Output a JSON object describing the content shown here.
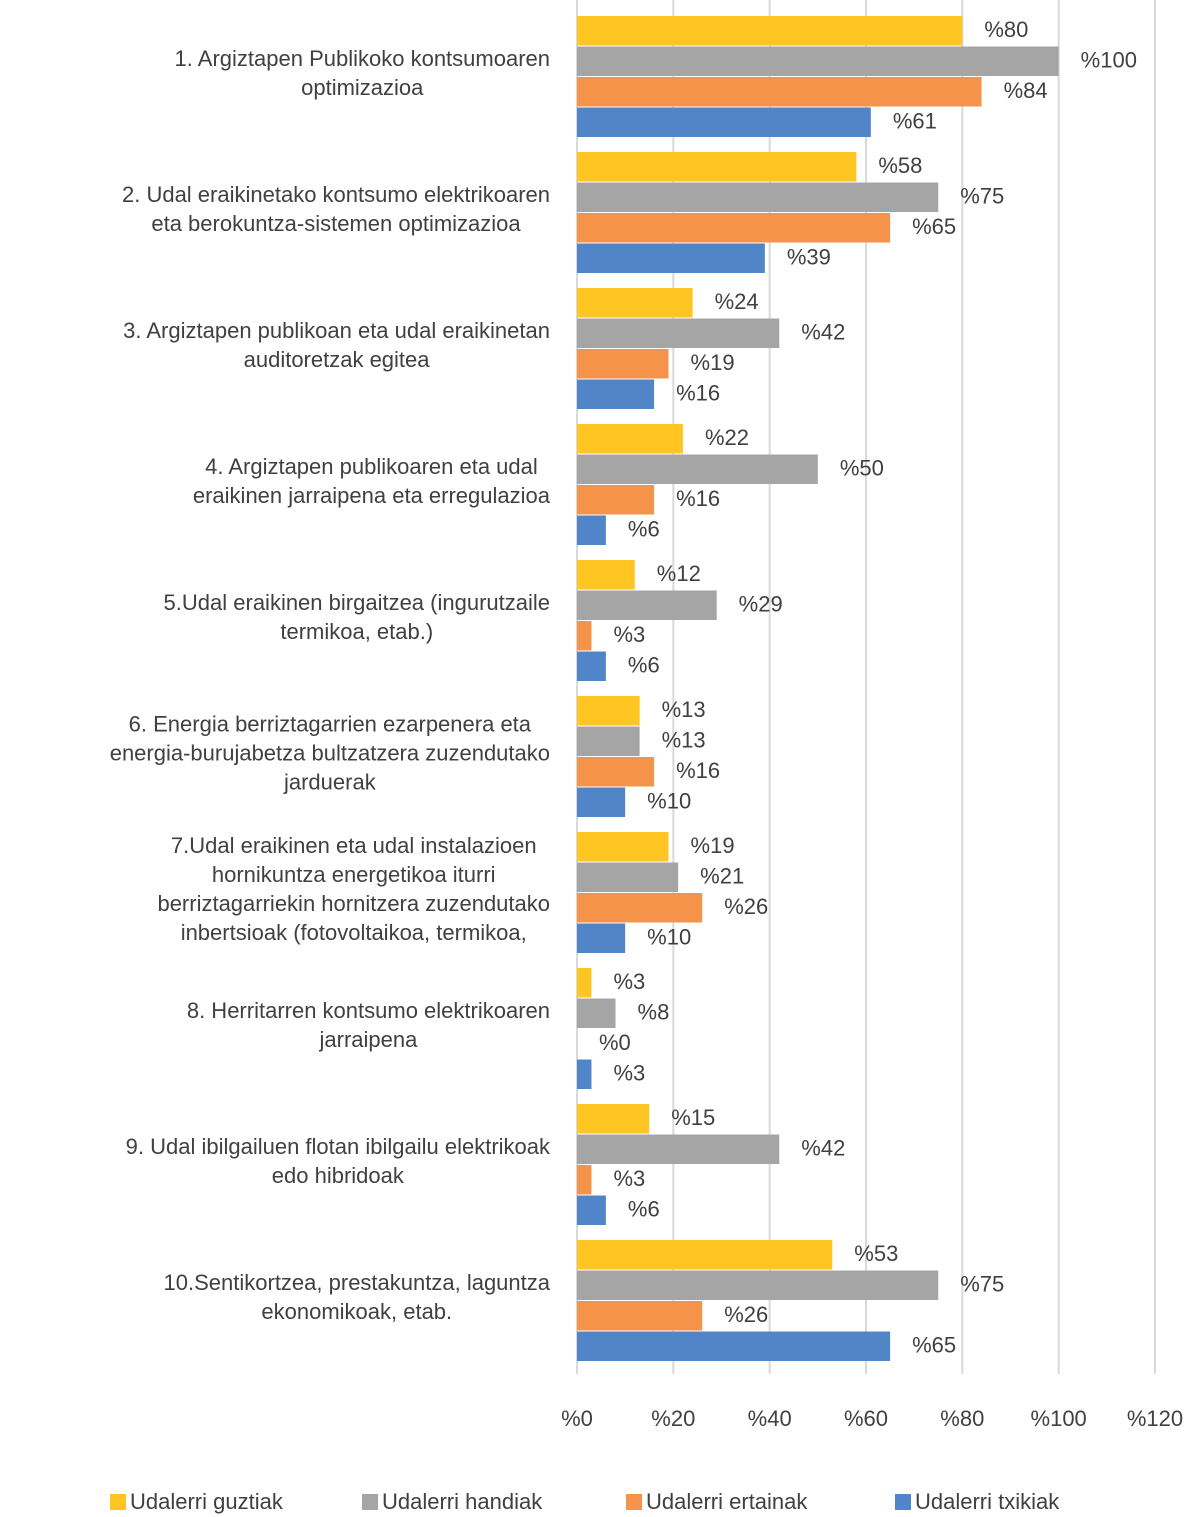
{
  "chart_data": {
    "type": "hbar",
    "categories": [
      "1. Argiztapen Publikoko kontsumoaren\noptimizazioa",
      "2. Udal eraikinetako kontsumo elektrikoaren\neta berokuntza-sistemen optimizazioa",
      "3. Argiztapen publikoan eta udal eraikinetan\nauditoretzak egitea",
      "4. Argiztapen publikoaren eta udal\neraikinen jarraipena eta erregulazioa",
      "5.Udal eraikinen birgaitzea (ingurutzaile\ntermikoa, etab.)",
      "6. Energia berriztagarrien ezarpenera eta\nenergia-burujabetza bultzatzera zuzendutako\njarduerak",
      "7.Udal eraikinen eta udal instalazioen\nhornikuntza energetikoa iturri\nberriztagarriekin hornitzera zuzendutako\ninbertsioak (fotovoltaikoa, termikoa,",
      "8. Herritarren kontsumo elektrikoaren\njarraipena",
      "9. Udal ibilgailuen flotan ibilgailu elektrikoak\nedo hibridoak",
      "10.Sentikortzea, prestakuntza, laguntza\nekonomikoak, etab."
    ],
    "series": [
      {
        "name": "Udalerri guztiak",
        "color": "#FFC522",
        "values": [
          80,
          58,
          24,
          22,
          12,
          13,
          19,
          3,
          15,
          53
        ],
        "value_labels": [
          "%80",
          "%58",
          "%24",
          "%22",
          "%12",
          "%13",
          "%19",
          "%3",
          "%15",
          "%53"
        ]
      },
      {
        "name": "Udalerri handiak",
        "color": "#A5A5A5",
        "values": [
          100,
          75,
          42,
          50,
          29,
          13,
          21,
          8,
          42,
          75
        ],
        "value_labels": [
          "%100",
          "%75",
          "%42",
          "%50",
          "%29",
          "%13",
          "%21",
          "%8",
          "%42",
          "%75"
        ]
      },
      {
        "name": "Udalerri ertainak",
        "color": "#F5934A",
        "values": [
          84,
          65,
          19,
          16,
          3,
          16,
          26,
          0,
          3,
          26
        ],
        "value_labels": [
          "%84",
          "%65",
          "%19",
          "%16",
          "%3",
          "%16",
          "%26",
          "%0",
          "%3",
          "%26"
        ]
      },
      {
        "name": "Udalerri txikiak",
        "color": "#5185C8",
        "values": [
          61,
          39,
          16,
          6,
          6,
          10,
          10,
          3,
          6,
          65
        ],
        "value_labels": [
          "%61",
          "%39",
          "%16",
          "%6",
          "%6",
          "%10",
          "%10",
          "%3",
          "%6",
          "%65"
        ]
      }
    ],
    "xlim": [
      0,
      120
    ],
    "xticks": [
      {
        "value": 0,
        "label": "%0"
      },
      {
        "value": 20,
        "label": "%20"
      },
      {
        "value": 40,
        "label": "%40"
      },
      {
        "value": 60,
        "label": "%60"
      },
      {
        "value": 80,
        "label": "%80"
      },
      {
        "value": 100,
        "label": "%100"
      },
      {
        "value": 120,
        "label": "%120"
      }
    ],
    "grid": true,
    "legend": "bottom"
  }
}
